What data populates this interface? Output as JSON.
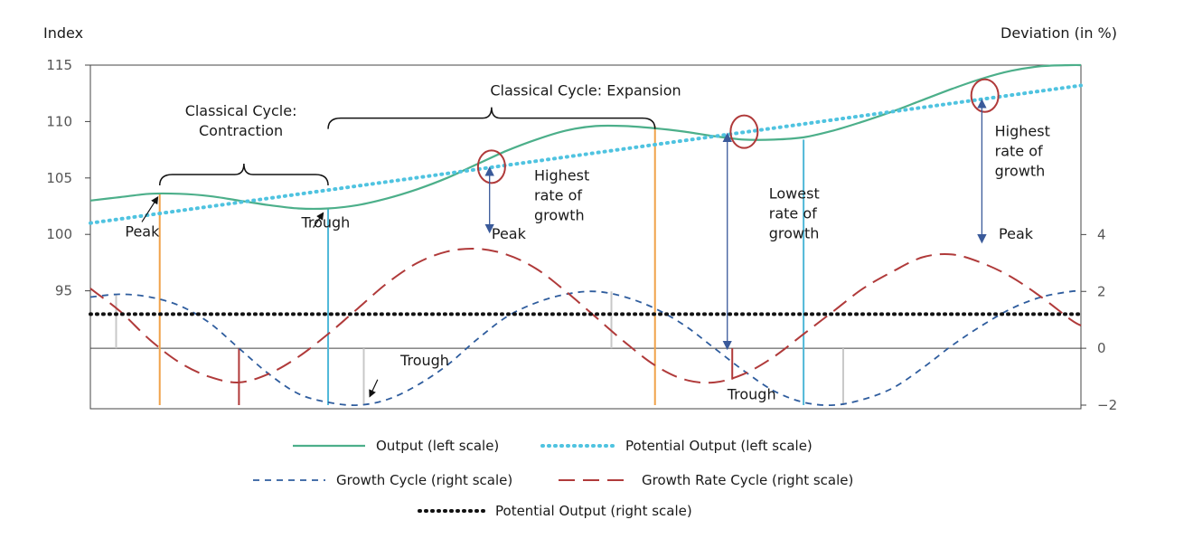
{
  "chart_data": {
    "type": "line",
    "left_axis": {
      "label": "Index",
      "range": [
        90,
        115
      ],
      "ticks": [
        95,
        100,
        105,
        110,
        115
      ]
    },
    "right_axis": {
      "label": "Deviation (in %)",
      "range": [
        -2,
        6
      ],
      "ticks": [
        -2,
        0,
        2,
        4
      ]
    },
    "x_range": [
      0,
      100
    ],
    "series": [
      {
        "name": "Output (left scale)",
        "axis": "left",
        "color": "#4caf8a",
        "style": "solid",
        "x": [
          0,
          3,
          6,
          9,
          12,
          15,
          18,
          21,
          24,
          27,
          30,
          33,
          36,
          39,
          42,
          45,
          48,
          51,
          54,
          57,
          60,
          63,
          66,
          69,
          72,
          75,
          78,
          81,
          84,
          87,
          90,
          93,
          96,
          99,
          100
        ],
        "y": [
          103.0,
          103.3,
          103.6,
          103.6,
          103.4,
          103.0,
          102.6,
          102.3,
          102.3,
          102.6,
          103.2,
          104.0,
          105.0,
          106.2,
          107.4,
          108.4,
          109.2,
          109.6,
          109.6,
          109.4,
          109.1,
          108.7,
          108.4,
          108.4,
          108.6,
          109.2,
          110.0,
          110.9,
          111.9,
          112.9,
          113.8,
          114.5,
          114.9,
          115.0,
          115.0
        ]
      },
      {
        "name": "Potential Output (left scale)",
        "axis": "left",
        "color": "#4fc3e0",
        "style": "dotted",
        "x": [
          0,
          100
        ],
        "y": [
          101.0,
          113.2
        ]
      },
      {
        "name": "Growth Cycle (right scale)",
        "axis": "right",
        "color": "#2f5d9e",
        "style": "dashed",
        "x": [
          0,
          3,
          6,
          9,
          12,
          15,
          18,
          21,
          24,
          27,
          30,
          33,
          36,
          39,
          42,
          45,
          48,
          51,
          54,
          57,
          60,
          63,
          66,
          69,
          72,
          75,
          78,
          81,
          84,
          87,
          90,
          93,
          96,
          99,
          100
        ],
        "y": [
          1.8,
          1.9,
          1.8,
          1.5,
          0.9,
          0.0,
          -0.9,
          -1.6,
          -1.9,
          -2.0,
          -1.8,
          -1.3,
          -0.6,
          0.3,
          1.1,
          1.6,
          1.9,
          2.0,
          1.8,
          1.4,
          0.8,
          0.0,
          -0.8,
          -1.5,
          -1.9,
          -2.0,
          -1.8,
          -1.4,
          -0.7,
          0.1,
          0.8,
          1.4,
          1.8,
          2.0,
          2.0
        ]
      },
      {
        "name": "Growth Rate Cycle (right scale)",
        "axis": "right",
        "color": "#b03a3a",
        "style": "longdash",
        "x": [
          0,
          3,
          6,
          9,
          12,
          15,
          18,
          21,
          24,
          27,
          30,
          33,
          36,
          39,
          42,
          45,
          48,
          51,
          54,
          57,
          60,
          63,
          66,
          69,
          72,
          75,
          78,
          81,
          84,
          87,
          90,
          93,
          96,
          99,
          100
        ],
        "y": [
          2.1,
          1.3,
          0.3,
          -0.5,
          -1.0,
          -1.2,
          -0.9,
          -0.3,
          0.5,
          1.4,
          2.3,
          3.0,
          3.4,
          3.5,
          3.3,
          2.8,
          2.0,
          1.1,
          0.2,
          -0.6,
          -1.1,
          -1.2,
          -0.9,
          -0.3,
          0.5,
          1.3,
          2.1,
          2.7,
          3.2,
          3.3,
          3.0,
          2.5,
          1.8,
          1.0,
          0.8
        ]
      },
      {
        "name": "Potential Output (right scale)",
        "axis": "right",
        "color": "#111111",
        "style": "dotted-black",
        "x": [
          0,
          100
        ],
        "y": [
          1.2,
          1.2
        ]
      }
    ],
    "annotations": {
      "texts": [
        {
          "text": "Classical Cycle: Expansion",
          "x": 50,
          "y": 112.3,
          "axis": "left",
          "lines": [
            "Classical Cycle: Expansion"
          ]
        },
        {
          "text": "Classical Cycle: Contraction",
          "x": 15.2,
          "y": 110.5,
          "axis": "left",
          "lines": [
            "Classical Cycle:",
            "Contraction"
          ]
        },
        {
          "text": "Peak",
          "x": 3.5,
          "y": 99.8,
          "axis": "left",
          "lines": [
            "Peak"
          ]
        },
        {
          "text": "Trough",
          "x": 21.3,
          "y": 100.6,
          "axis": "left",
          "lines": [
            "Trough"
          ]
        },
        {
          "text": "Highest rate of growth",
          "x": 44.8,
          "y": 104.8,
          "axis": "left",
          "lines": [
            "Highest",
            "rate of",
            "growth"
          ]
        },
        {
          "text": "Peak",
          "x": 40.5,
          "y": 99.6,
          "axis": "left",
          "lines": [
            "Peak"
          ]
        },
        {
          "text": "Lowest rate of growth",
          "x": 68.5,
          "y": 103.2,
          "axis": "left",
          "lines": [
            "Lowest",
            "rate of",
            "growth"
          ]
        },
        {
          "text": "Highest rate of growth",
          "x": 91.3,
          "y": 108.7,
          "axis": "left",
          "lines": [
            "Highest",
            "rate of",
            "growth"
          ]
        },
        {
          "text": "Peak",
          "x": 91.7,
          "y": 99.6,
          "axis": "left",
          "lines": [
            "Peak"
          ]
        },
        {
          "text": "Trough",
          "x": 31.3,
          "y": -0.6,
          "axis": "right",
          "lines": [
            "Trough"
          ]
        },
        {
          "text": "Trough",
          "x": 64.3,
          "y": -1.8,
          "axis": "right",
          "lines": [
            "Trough"
          ]
        }
      ],
      "braces": [
        {
          "name": "expansion-brace",
          "x1": 24,
          "x2": 57,
          "y": 110.3,
          "axis": "left"
        },
        {
          "name": "contraction-brace",
          "x1": 7,
          "x2": 24,
          "y": 105.3,
          "axis": "left"
        }
      ],
      "circles": [
        {
          "name": "highest-growth-circle-1",
          "x": 40.5,
          "y": 106.0,
          "axis": "left"
        },
        {
          "name": "lowest-growth-circle",
          "x": 66.0,
          "y": 109.1,
          "axis": "left"
        },
        {
          "name": "highest-growth-circle-2",
          "x": 90.3,
          "y": 112.3,
          "axis": "left"
        }
      ],
      "vlines": [
        {
          "name": "orange-vline-1",
          "x": 7.0,
          "color": "#f0a24a",
          "top_left": 103.6,
          "bottom_right": -2
        },
        {
          "name": "orange-vline-2",
          "x": 57.0,
          "color": "#f0a24a",
          "top_left": 109.6,
          "bottom_right": -2
        },
        {
          "name": "cyan-vline-1",
          "x": 24.0,
          "color": "#4fb8d8",
          "top_left": 102.3,
          "bottom_right": -2
        },
        {
          "name": "cyan-vline-2",
          "x": 72.0,
          "color": "#4fb8d8",
          "top_left": 108.4,
          "bottom_right": -2
        },
        {
          "name": "gray-vline-1",
          "x": 2.6,
          "color": "#c8c8c8",
          "top_right": 1.9,
          "bottom_right": 0
        },
        {
          "name": "gray-vline-2",
          "x": 52.6,
          "color": "#c8c8c8",
          "top_right": 2.0,
          "bottom_right": 0
        },
        {
          "name": "gray-vline-3",
          "x": 27.6,
          "color": "#c8c8c8",
          "top_right": 0,
          "bottom_right": -2.0
        },
        {
          "name": "gray-vline-4",
          "x": 76.0,
          "color": "#c8c8c8",
          "top_right": 0,
          "bottom_right": -2.0
        },
        {
          "name": "red-vline-1",
          "x": 15.0,
          "color": "#b03a3a",
          "top_right": 0,
          "bottom_right": -2
        },
        {
          "name": "red-vline-2",
          "x": 64.8,
          "color": "#b03a3a",
          "top_right": 0,
          "bottom_right": -1.1
        }
      ],
      "arrows": [
        {
          "name": "growth-arrow-1",
          "x": 40.3,
          "y1_left": 105.6,
          "y2_left": 100.5
        },
        {
          "name": "growth-arrow-2",
          "x": 64.3,
          "y1_left": 108.6,
          "y2_left": 0,
          "y2_right": 0.1
        },
        {
          "name": "growth-arrow-3",
          "x": 90.0,
          "y1_left": 111.6,
          "y2_left": 99.6
        }
      ]
    },
    "legend": {
      "placement": "bottom",
      "rows": [
        [
          "Output (left scale)",
          "Potential Output (left scale)"
        ],
        [
          "Growth Cycle (right scale)",
          "Growth Rate Cycle (right scale)"
        ],
        [
          "Potential Output (right scale)"
        ]
      ]
    }
  }
}
